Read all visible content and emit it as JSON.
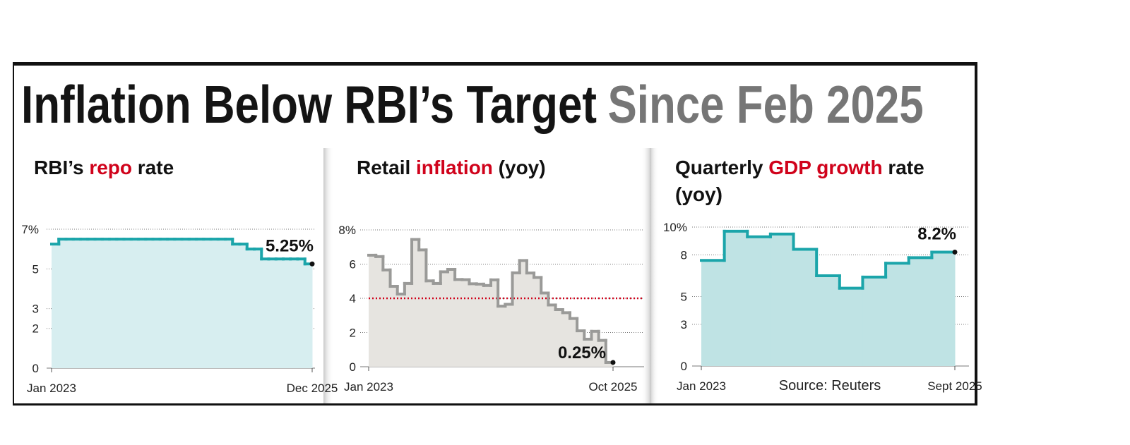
{
  "headline": [
    {
      "text": "Inflation Below RBI’s Target",
      "color": "#141414"
    },
    {
      "text": "Since Feb 2025",
      "color": "#767676"
    }
  ],
  "source": "Source: Reuters",
  "chart_data": [
    {
      "type": "step",
      "title": [
        {
          "text": "RBI’s "
        },
        {
          "text": "repo",
          "color": "#d0021b"
        },
        {
          "text": " rate"
        }
      ],
      "categories": [
        "Jan 2023",
        null,
        null,
        null,
        null,
        null,
        null,
        null,
        null,
        null,
        null,
        null,
        null,
        null,
        null,
        null,
        null,
        null,
        null,
        null,
        null,
        null,
        null,
        null,
        null,
        null,
        null,
        null,
        null,
        null,
        null,
        null,
        null,
        null,
        null,
        "Dec 2025"
      ],
      "values": [
        6.25,
        6.5,
        6.5,
        6.5,
        6.5,
        6.5,
        6.5,
        6.5,
        6.5,
        6.5,
        6.5,
        6.5,
        6.5,
        6.5,
        6.5,
        6.5,
        6.5,
        6.5,
        6.5,
        6.5,
        6.5,
        6.5,
        6.5,
        6.5,
        6.5,
        6.25,
        6.25,
        6.0,
        6.0,
        5.5,
        5.5,
        5.5,
        5.5,
        5.5,
        5.5,
        5.25
      ],
      "value_labels": [
        null,
        null,
        null,
        null,
        null,
        null,
        null,
        null,
        null,
        null,
        null,
        null,
        null,
        null,
        null,
        null,
        null,
        null,
        null,
        null,
        null,
        null,
        null,
        null,
        null,
        null,
        null,
        null,
        null,
        null,
        null,
        null,
        null,
        null,
        null,
        "5.25%"
      ],
      "color": "#1ba5aa",
      "fill_color": "#d7eef0",
      "ylim": [
        0,
        7
      ],
      "yticks": [
        0,
        2,
        3,
        5,
        {
          "value": 7,
          "label": "7%"
        }
      ],
      "grid": true
    },
    {
      "type": "step",
      "title": [
        {
          "text": "Retail "
        },
        {
          "text": "inflation",
          "color": "#d0021b"
        },
        {
          "text": " (yoy)"
        }
      ],
      "categories": [
        "Jan 2023",
        null,
        null,
        null,
        null,
        null,
        null,
        null,
        null,
        null,
        null,
        null,
        null,
        null,
        null,
        null,
        null,
        null,
        null,
        null,
        null,
        null,
        null,
        null,
        null,
        null,
        null,
        null,
        null,
        null,
        null,
        null,
        null,
        "Oct 2025"
      ],
      "values": [
        6.52,
        6.44,
        5.66,
        4.7,
        4.25,
        4.87,
        7.44,
        6.83,
        5.02,
        4.87,
        5.55,
        5.69,
        5.1,
        5.09,
        4.85,
        4.83,
        4.75,
        5.08,
        3.54,
        3.65,
        5.49,
        6.21,
        5.48,
        5.22,
        4.31,
        3.61,
        3.34,
        3.16,
        2.82,
        2.1,
        1.61,
        2.07,
        1.54,
        0.25
      ],
      "value_labels": [
        null,
        null,
        null,
        null,
        null,
        null,
        null,
        null,
        null,
        null,
        null,
        null,
        null,
        null,
        null,
        null,
        null,
        null,
        null,
        null,
        null,
        null,
        null,
        null,
        null,
        null,
        null,
        null,
        null,
        null,
        null,
        null,
        null,
        "0.25%"
      ],
      "color": "#9a9a98",
      "fill_color": "#e6e4e0",
      "target_line": {
        "value": 4,
        "color": "#d0021b"
      },
      "ylim": [
        0,
        8
      ],
      "yticks": [
        0,
        2,
        4,
        6,
        {
          "value": 8,
          "label": "8%"
        }
      ],
      "grid": true
    },
    {
      "type": "step",
      "title": [
        {
          "text": "Quarterly "
        },
        {
          "text": "GDP growth",
          "color": "#d0021b"
        },
        {
          "text": " rate"
        }
      ],
      "title_line2": "(yoy)",
      "categories": [
        "Jan 2023",
        null,
        null,
        null,
        null,
        null,
        null,
        null,
        null,
        null,
        "Sept 2025"
      ],
      "values": [
        7.6,
        9.7,
        9.3,
        9.5,
        8.4,
        6.5,
        5.6,
        6.4,
        7.4,
        7.8,
        8.2
      ],
      "value_labels": [
        null,
        null,
        null,
        null,
        null,
        null,
        null,
        null,
        null,
        null,
        "8.2%"
      ],
      "color": "#1ba5aa",
      "fill_color": "#bfe3e4",
      "ylim": [
        0,
        10
      ],
      "yticks": [
        0,
        3,
        5,
        8,
        {
          "value": 10,
          "label": "10%"
        }
      ],
      "grid": true
    }
  ]
}
